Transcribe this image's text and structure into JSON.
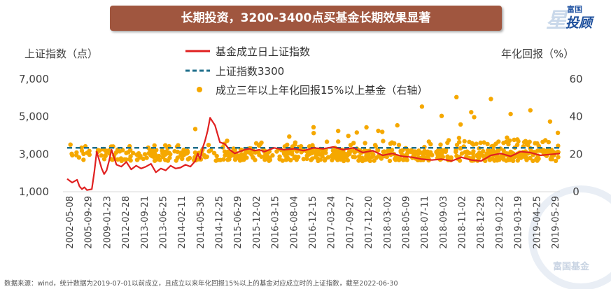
{
  "title": "长期投资，3200-3400点买基金长期效果显著",
  "logo": {
    "top": "富国",
    "main": "投顾",
    "star": "星"
  },
  "watermark": "富国基金",
  "footnote": "数据来源：wind，统计数据为2019-07-01以前成立，且成立以来年化回报15%以上的基金对应成立时的上证指数，截至2022-06-30",
  "colors": {
    "index_line": "#e02020",
    "ref_line": "#1f6f8b",
    "dots": "#f5a800",
    "banner": "#a0563f"
  },
  "chart_data": {
    "type": "scatter",
    "ylabel_left": "上证指数（点）",
    "ylabel_right": "年化回报（%）",
    "y_left_ticks": [
      "1,000",
      "3,000",
      "5,000",
      "7,000"
    ],
    "y_left_values": [
      1000,
      3000,
      5000,
      7000
    ],
    "y_left_range": [
      1000,
      7000
    ],
    "y_right_ticks": [
      "0",
      "20",
      "40",
      "60"
    ],
    "y_right_values": [
      0,
      20,
      40,
      60
    ],
    "y_right_range": [
      0,
      60
    ],
    "x_ticks": [
      "2002-05-08",
      "2005-09-29",
      "2009-01-23",
      "2012-02-28",
      "2013-09-21",
      "2013-06-25",
      "2014-02-11",
      "2014-05-30",
      "2014-12-25",
      "2015-06-29",
      "2015-12-02",
      "2016-03-15",
      "2016-08-04",
      "2016-12-15",
      "2017-03-24",
      "2017-09-27",
      "2017-12-20",
      "2018-03-02",
      "2018-05-09",
      "2018-07-11",
      "2018-09-03",
      "2018-11-02",
      "2018-12-29",
      "2019-01-22",
      "2019-03-19",
      "2019-04-25",
      "2019-05-29"
    ],
    "legend": [
      {
        "key": "index_line",
        "label": "基金成立日上证指数"
      },
      {
        "key": "ref_line",
        "label": "上证指数3300"
      },
      {
        "key": "dots",
        "label": "成立三年以上年化回报15%以上基金（右轴）"
      }
    ],
    "reference_line": {
      "series": "上证指数3300",
      "value": 3300
    },
    "index_series": {
      "name": "基金成立日上证指数",
      "t": [
        0,
        0.01,
        0.02,
        0.025,
        0.03,
        0.035,
        0.04,
        0.05,
        0.055,
        0.06,
        0.07,
        0.075,
        0.08,
        0.085,
        0.09,
        0.1,
        0.11,
        0.12,
        0.13,
        0.14,
        0.15,
        0.16,
        0.17,
        0.18,
        0.19,
        0.2,
        0.21,
        0.22,
        0.23,
        0.24,
        0.25,
        0.26,
        0.265,
        0.27,
        0.275,
        0.28,
        0.285,
        0.29,
        0.3,
        0.31,
        0.32,
        0.33,
        0.34,
        0.35,
        0.36,
        0.37,
        0.38,
        0.39,
        0.4,
        0.42,
        0.44,
        0.46,
        0.48,
        0.5,
        0.52,
        0.54,
        0.56,
        0.58,
        0.6,
        0.62,
        0.64,
        0.66,
        0.68,
        0.7,
        0.72,
        0.74,
        0.76,
        0.78,
        0.8,
        0.82,
        0.84,
        0.86,
        0.88,
        0.9,
        0.92,
        0.94,
        0.96,
        0.98,
        1.0
      ],
      "values": [
        1650,
        1450,
        1600,
        1250,
        1100,
        1200,
        1050,
        1100,
        2000,
        3100,
        2200,
        1900,
        2100,
        2600,
        3200,
        2400,
        2300,
        2550,
        2150,
        2350,
        2200,
        2300,
        2450,
        2000,
        2200,
        2100,
        2350,
        2200,
        2250,
        2400,
        2300,
        2600,
        3000,
        2700,
        3300,
        3700,
        4200,
        4900,
        4500,
        3600,
        3500,
        3200,
        3000,
        3100,
        3200,
        3250,
        3150,
        3200,
        3100,
        3300,
        3200,
        3250,
        3150,
        3300,
        3250,
        3350,
        3200,
        3300,
        3050,
        3150,
        2900,
        3000,
        2850,
        2800,
        2700,
        2650,
        2700,
        2600,
        2800,
        2650,
        2600,
        2900,
        3000,
        2850,
        3100,
        3050,
        2900,
        2950,
        3000
      ]
    },
    "dots_series": {
      "name": "成立三年以上年化回报15%以上基金（右轴）",
      "note": "约数百只基金，年化回报约15%–50%，多数集中在16%–25%",
      "highlights": [
        {
          "t": 0.79,
          "value": 50
        },
        {
          "t": 0.86,
          "value": 49
        },
        {
          "t": 0.72,
          "value": 45
        },
        {
          "t": 0.94,
          "value": 43
        },
        {
          "t": 0.82,
          "value": 42
        },
        {
          "t": 0.9,
          "value": 41
        },
        {
          "t": 0.76,
          "value": 40
        },
        {
          "t": 0.98,
          "value": 37
        },
        {
          "t": 0.67,
          "value": 35
        },
        {
          "t": 0.26,
          "value": 33
        },
        {
          "t": 0.5,
          "value": 34
        },
        {
          "t": 0.55,
          "value": 32
        }
      ]
    }
  }
}
